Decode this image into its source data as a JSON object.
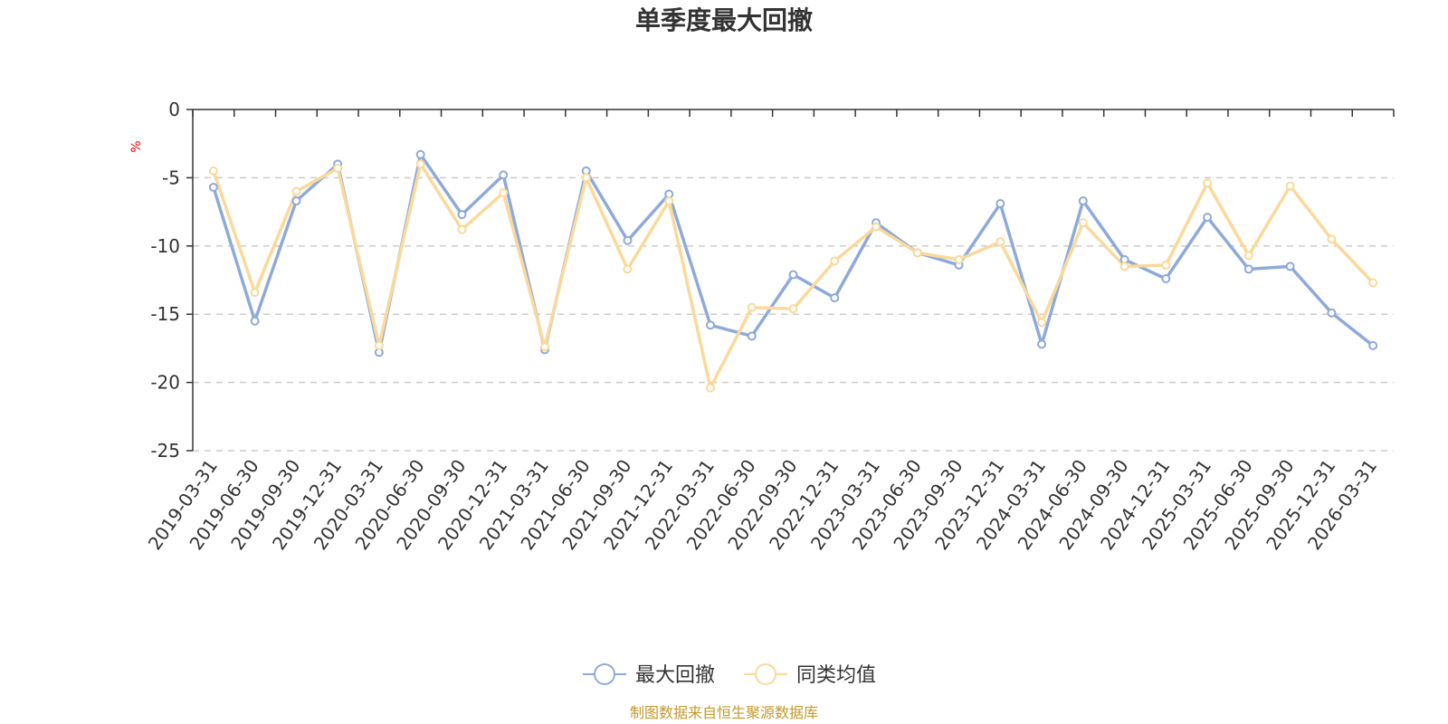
{
  "chart_data": {
    "type": "line",
    "title": "单季度最大回撤",
    "ylabel": "%",
    "ylim": [
      -25,
      0
    ],
    "yticks": [
      0,
      -5,
      -10,
      -15,
      -20,
      -25
    ],
    "grid": true,
    "legend_position": "bottom-center",
    "categories": [
      "2019-03-31",
      "2019-06-30",
      "2019-09-30",
      "2019-12-31",
      "2020-03-31",
      "2020-06-30",
      "2020-09-30",
      "2020-12-31",
      "2021-03-31",
      "2021-06-30",
      "2021-09-30",
      "2021-12-31",
      "2022-03-31",
      "2022-06-30",
      "2022-09-30",
      "2022-12-31",
      "2023-03-31",
      "2023-06-30",
      "2023-09-30",
      "2023-12-31",
      "2024-03-31",
      "2024-06-30",
      "2024-09-30",
      "2024-12-31",
      "2025-03-31",
      "2025-06-30",
      "2025-09-30",
      "2025-12-31",
      "2026-03-31"
    ],
    "series": [
      {
        "name": "最大回撤",
        "color": "#8eaadb",
        "values": [
          -5.7,
          -15.5,
          -6.7,
          -4.0,
          -17.8,
          -3.3,
          -7.7,
          -4.8,
          -17.6,
          -4.5,
          -9.6,
          -6.2,
          -15.8,
          -16.6,
          -12.1,
          -13.8,
          -8.3,
          -10.5,
          -11.4,
          -6.9,
          -17.2,
          -6.7,
          -11.0,
          -12.4,
          -7.9,
          -11.7,
          -11.5,
          -14.9,
          -17.3
        ]
      },
      {
        "name": "同类均值",
        "color": "#fad99a",
        "values": [
          -4.5,
          -13.4,
          -6.0,
          -4.3,
          -17.3,
          -4.0,
          -8.8,
          -6.1,
          -17.4,
          -5.0,
          -11.7,
          -6.7,
          -20.4,
          -14.5,
          -14.6,
          -11.1,
          -8.6,
          -10.5,
          -11.0,
          -9.7,
          -15.6,
          -8.3,
          -11.5,
          -11.4,
          -5.4,
          -10.7,
          -5.6,
          -9.5,
          -12.7
        ]
      }
    ]
  },
  "footer": {
    "source": "制图数据来自恒生聚源数据库"
  }
}
